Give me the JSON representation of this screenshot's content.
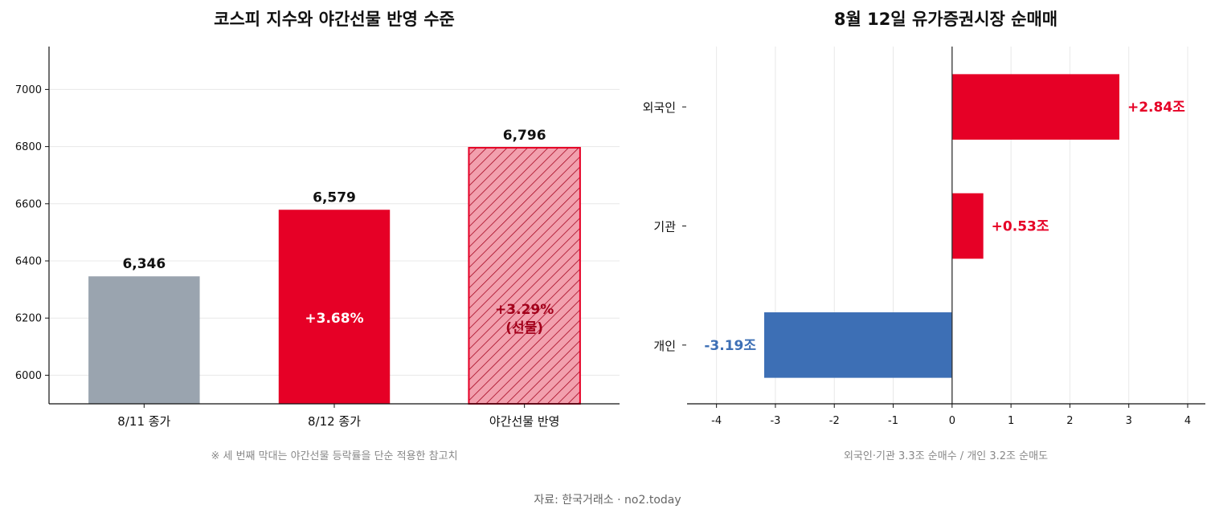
{
  "colors": {
    "gray": "#9aa4af",
    "red": "#e60026",
    "red_light": "#f2a0ae",
    "red_dark": "#a3001b",
    "blue": "#3d6fb5",
    "grid": "#e8e8e8"
  },
  "chart_data": [
    {
      "type": "bar",
      "title": "코스피 지수와 야간선물 반영 수준",
      "categories": [
        "8/11 종가",
        "8/12 종가",
        "야간선물 반영"
      ],
      "values": [
        6346,
        6579,
        6796
      ],
      "value_labels": [
        "6,346",
        "6,579",
        "6,796"
      ],
      "inner_labels": [
        "",
        "+3.68%",
        "+3.29%\n(선물)"
      ],
      "bar_colors": [
        "#9aa4af",
        "#e60026",
        "#f2a0ae"
      ],
      "hatched": [
        false,
        false,
        true
      ],
      "ylim": [
        5900,
        7150
      ],
      "yticks": [
        6000,
        6200,
        6400,
        6600,
        6800,
        7000
      ],
      "grid": "horizontal",
      "note": "※ 세 번째 막대는 야간선물 등락률을 단순 적용한 참고치"
    },
    {
      "type": "bar",
      "orientation": "horizontal",
      "title": "8월 12일 유가증권시장 순매매",
      "categories": [
        "외국인",
        "기관",
        "개인"
      ],
      "values": [
        2.84,
        0.53,
        -3.19
      ],
      "value_labels": [
        "+2.84조",
        "+0.53조",
        "-3.19조"
      ],
      "bar_colors": [
        "#e60026",
        "#e60026",
        "#3d6fb5"
      ],
      "xlim": [
        -4.5,
        4.3
      ],
      "xticks": [
        -4,
        -3,
        -2,
        -1,
        0,
        1,
        2,
        3,
        4
      ],
      "grid": "vertical",
      "note": "외국인·기관 3.3조 순매수 / 개인 3.2조 순매도"
    }
  ],
  "source": "자료: 한국거래소 · no2.today"
}
